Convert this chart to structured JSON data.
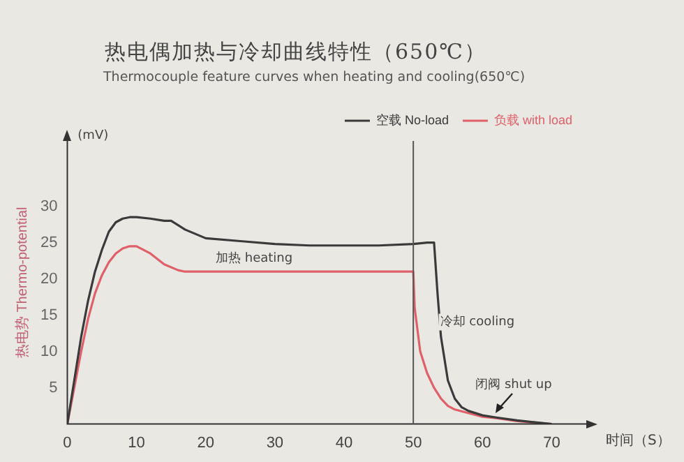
{
  "chart_data": {
    "type": "line",
    "title": "热电偶加热与冷却曲线特性（650℃）",
    "subtitle": "Thermocouple feature curves when heating and cooling(650℃)",
    "xlabel": "时间（S）",
    "ylabel": "热电势 Thermo-potential",
    "annotations": [
      "(mV)",
      "加热 heating",
      "冷却 cooling",
      "闭阀 shut up"
    ],
    "xlim": [
      0,
      75
    ],
    "xticks": [
      0,
      10,
      20,
      30,
      40,
      50,
      60,
      70
    ],
    "ylim": [
      0,
      39
    ],
    "yticks": [
      5,
      10,
      15,
      20,
      25,
      30
    ],
    "grid": false,
    "legend": "top right",
    "line_style": "solid",
    "marker": "none",
    "ref_lines": [
      {
        "axis": "x",
        "value": 50,
        "color": "#555555"
      }
    ],
    "series": [
      {
        "name": "空载 No-load",
        "color": "#3a3a3a",
        "x": [
          0,
          1,
          2,
          3,
          4,
          5,
          6,
          7,
          8,
          9,
          10,
          12,
          14,
          15,
          17,
          20,
          25,
          30,
          35,
          40,
          45,
          50,
          52,
          53,
          53.5,
          54,
          55,
          56,
          57,
          58,
          60,
          62,
          65,
          70
        ],
        "values": [
          0,
          6,
          12,
          17,
          21,
          24,
          26.5,
          27.8,
          28.3,
          28.5,
          28.5,
          28.3,
          28,
          28,
          26.8,
          25.6,
          25.2,
          24.8,
          24.6,
          24.6,
          24.6,
          24.8,
          25,
          25,
          18,
          12,
          6,
          3.5,
          2.3,
          1.8,
          1.2,
          0.9,
          0.5,
          0
        ]
      },
      {
        "name": "负载 with load",
        "color": "#e0606a",
        "x": [
          0,
          1,
          2,
          3,
          4,
          5,
          6,
          7,
          8,
          9,
          10,
          12,
          14,
          16,
          17,
          20,
          30,
          40,
          45,
          50,
          50.2,
          51,
          52,
          53,
          54,
          55,
          56,
          58,
          60,
          62,
          65,
          70
        ],
        "values": [
          0,
          5,
          10,
          14.5,
          18,
          20.5,
          22.3,
          23.5,
          24.2,
          24.5,
          24.5,
          23.5,
          22,
          21.2,
          21,
          21,
          21,
          21,
          21,
          21,
          16,
          10,
          7,
          5,
          3.5,
          2.5,
          2,
          1.5,
          1,
          0.8,
          0.4,
          0
        ]
      }
    ]
  }
}
